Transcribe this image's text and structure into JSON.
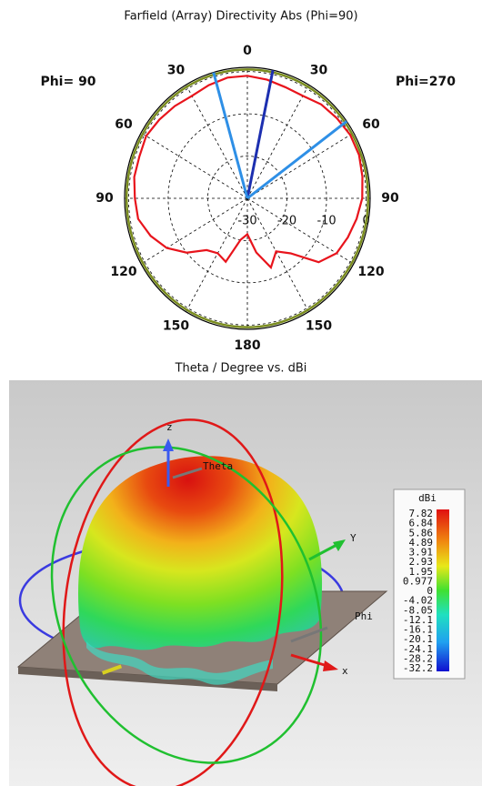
{
  "chart_data": {
    "type": "polar",
    "title": "Farfield (Array) Directivity Abs (Phi=90)",
    "left_label": "Phi= 90",
    "right_label": "Phi=270",
    "theta": [
      -180,
      -170,
      -160,
      -150,
      -140,
      -130,
      -120,
      -110,
      -100,
      -90,
      -80,
      -70,
      -60,
      -50,
      -40,
      -30,
      -20,
      -10,
      0,
      10,
      20,
      30,
      40,
      50,
      60,
      70,
      80,
      90,
      100,
      110,
      120,
      130,
      140,
      150,
      160,
      170
    ],
    "values": [
      -21.5,
      -20,
      -14,
      -15,
      -14,
      -10,
      -6.5,
      -4,
      -2,
      -1.6,
      -1,
      -1,
      -0.5,
      -1,
      -1.5,
      -2,
      -1.5,
      -1,
      -1,
      -1.5,
      -2,
      -2,
      -1,
      -0.5,
      0,
      0,
      -0.5,
      -1,
      -2,
      -3,
      -4,
      -6.5,
      -13,
      -15.5,
      -12.6,
      -17
    ],
    "color": "#e8141c",
    "rlim": [
      -30,
      1
    ],
    "rticks": [
      -30,
      -20,
      -10,
      0
    ],
    "reference_circle": 0.5,
    "reference_color": "#7a8c1e",
    "thetaticks": [
      0,
      {
        "value": 30,
        "label": "30"
      },
      60,
      90,
      120,
      150,
      180,
      {
        "value": -30,
        "label": "30"
      },
      {
        "value": -60,
        "label": "60"
      },
      {
        "value": -90,
        "label": "90"
      },
      {
        "value": -120,
        "label": "120"
      },
      {
        "value": -150,
        "label": "150"
      }
    ],
    "direction_lines": [
      {
        "angle": 12,
        "color": "#1c2fb0"
      },
      {
        "angle": -16,
        "color": "#2e8fe6"
      },
      {
        "angle": 54,
        "color": "#2e8fe6"
      }
    ],
    "grid": true
  },
  "render": {
    "title": "Theta / Degree vs. dBi",
    "axis_z": "z",
    "axis_theta": "Theta",
    "axis_y": "Y",
    "axis_phi": "Phi",
    "axis_x": "x",
    "colorbar": {
      "title": "dBi",
      "labels": [
        "7.82",
        "6.84",
        "5.86",
        "4.89",
        "3.91",
        "2.93",
        "1.95",
        "0.977",
        "0",
        "-4.02",
        "-8.05",
        "-12.1",
        "-16.1",
        "-20.1",
        "-24.1",
        "-28.2",
        "-32.2"
      ]
    }
  }
}
